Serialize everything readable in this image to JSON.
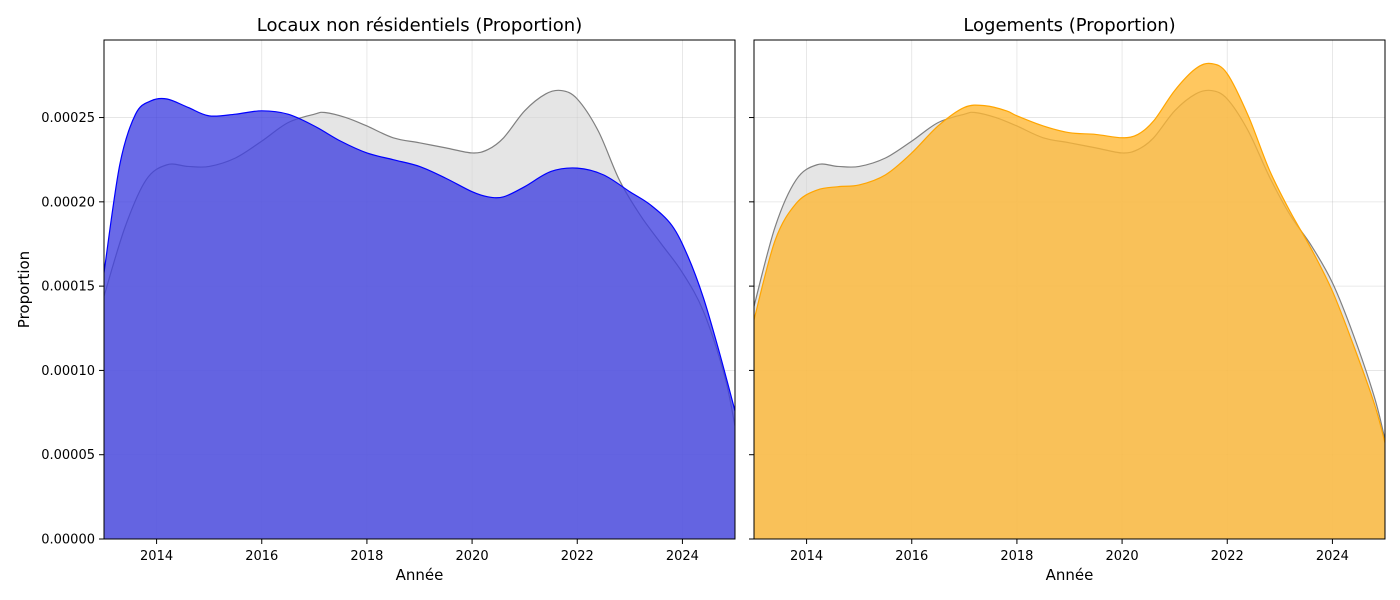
{
  "chart_data": [
    {
      "type": "area",
      "title": "Locaux non résidentiels (Proportion)",
      "xlabel": "Année",
      "ylabel": "Proportion",
      "xlim": [
        2013,
        2025
      ],
      "ylim": [
        0,
        0.000296
      ],
      "xticks": [
        "2014",
        "2016",
        "2018",
        "2020",
        "2022",
        "2024"
      ],
      "yticks": [
        "0.00000",
        "0.00005",
        "0.00010",
        "0.00015",
        "0.00020",
        "0.00025"
      ],
      "grid": true,
      "series": [
        {
          "color": "#808080",
          "fill": "#d3d3d3",
          "x": [
            2013,
            2013.4,
            2013.8,
            2014.2,
            2014.6,
            2015,
            2015.5,
            2016,
            2016.5,
            2017,
            2017.2,
            2017.6,
            2018,
            2018.5,
            2019,
            2019.5,
            2020,
            2020.3,
            2020.6,
            2021,
            2021.4,
            2021.7,
            2022,
            2022.4,
            2022.8,
            2023.2,
            2023.6,
            2024,
            2024.4,
            2024.8,
            2025
          ],
          "y": [
            0.000144,
            0.000185,
            0.000213,
            0.000222,
            0.000221,
            0.000221,
            0.000226,
            0.000236,
            0.000247,
            0.000252,
            0.000253,
            0.00025,
            0.000245,
            0.000238,
            0.000235,
            0.000232,
            0.000229,
            0.000231,
            0.000238,
            0.000254,
            0.000264,
            0.000266,
            0.000261,
            0.000242,
            0.000213,
            0.000192,
            0.000175,
            0.000158,
            0.000135,
            9.7e-05,
            6.7e-05
          ]
        },
        {
          "color": "#0000ff",
          "fill": "#4040e0",
          "x": [
            2013,
            2013.3,
            2013.6,
            2013.9,
            2014.2,
            2014.6,
            2015,
            2015.5,
            2016,
            2016.5,
            2017,
            2017.5,
            2018,
            2018.5,
            2019,
            2019.5,
            2020,
            2020.3,
            2020.6,
            2021,
            2021.5,
            2022,
            2022.5,
            2023,
            2023.4,
            2023.8,
            2024.1,
            2024.4,
            2024.7,
            2025
          ],
          "y": [
            0.000158,
            0.000222,
            0.000252,
            0.00026,
            0.000261,
            0.000256,
            0.000251,
            0.000252,
            0.000254,
            0.000252,
            0.000245,
            0.000236,
            0.000229,
            0.000225,
            0.000221,
            0.000214,
            0.000206,
            0.000203,
            0.000203,
            0.000209,
            0.000218,
            0.00022,
            0.000216,
            0.000206,
            0.000198,
            0.000186,
            0.000168,
            0.000143,
            0.000111,
            7.6e-05
          ]
        }
      ]
    },
    {
      "type": "area",
      "title": "Logements (Proportion)",
      "xlabel": "Année",
      "ylabel": "",
      "xlim": [
        2013,
        2025
      ],
      "ylim": [
        0,
        0.000296
      ],
      "xticks": [
        "2014",
        "2016",
        "2018",
        "2020",
        "2022",
        "2024"
      ],
      "yticks": [],
      "grid": true,
      "series": [
        {
          "color": "#808080",
          "fill": "#d3d3d3",
          "x": [
            2013,
            2013.4,
            2013.8,
            2014.2,
            2014.6,
            2015,
            2015.5,
            2016,
            2016.5,
            2017,
            2017.2,
            2017.6,
            2018,
            2018.5,
            2019,
            2019.5,
            2020,
            2020.3,
            2020.6,
            2021,
            2021.4,
            2021.7,
            2022,
            2022.4,
            2022.8,
            2023.2,
            2023.6,
            2024,
            2024.4,
            2024.8,
            2025
          ],
          "y": [
            0.000138,
            0.000185,
            0.000213,
            0.000222,
            0.000221,
            0.000221,
            0.000226,
            0.000236,
            0.000247,
            0.000252,
            0.000253,
            0.00025,
            0.000245,
            0.000238,
            0.000235,
            0.000232,
            0.000229,
            0.000231,
            0.000238,
            0.000254,
            0.000264,
            0.000266,
            0.000261,
            0.000242,
            0.000215,
            0.000192,
            0.000174,
            0.000152,
            0.000121,
            8.4e-05,
            5.9e-05
          ]
        },
        {
          "color": "#ffa500",
          "fill": "#ffb732",
          "x": [
            2013,
            2013.4,
            2013.8,
            2014.2,
            2014.6,
            2015,
            2015.5,
            2016,
            2016.5,
            2017,
            2017.4,
            2017.8,
            2018,
            2018.5,
            2019,
            2019.5,
            2020,
            2020.3,
            2020.6,
            2021,
            2021.4,
            2021.7,
            2022,
            2022.4,
            2022.8,
            2023.2,
            2023.6,
            2024,
            2024.4,
            2024.8,
            2025
          ],
          "y": [
            0.00013,
            0.000177,
            0.000199,
            0.000207,
            0.000209,
            0.00021,
            0.000216,
            0.000229,
            0.000245,
            0.000256,
            0.000257,
            0.000254,
            0.000251,
            0.000245,
            0.000241,
            0.00024,
            0.000238,
            0.00024,
            0.000248,
            0.000266,
            0.000279,
            0.000282,
            0.000276,
            0.000251,
            0.000219,
            0.000194,
            0.000172,
            0.000147,
            0.000115,
            8e-05,
            5.7e-05
          ]
        }
      ]
    }
  ]
}
